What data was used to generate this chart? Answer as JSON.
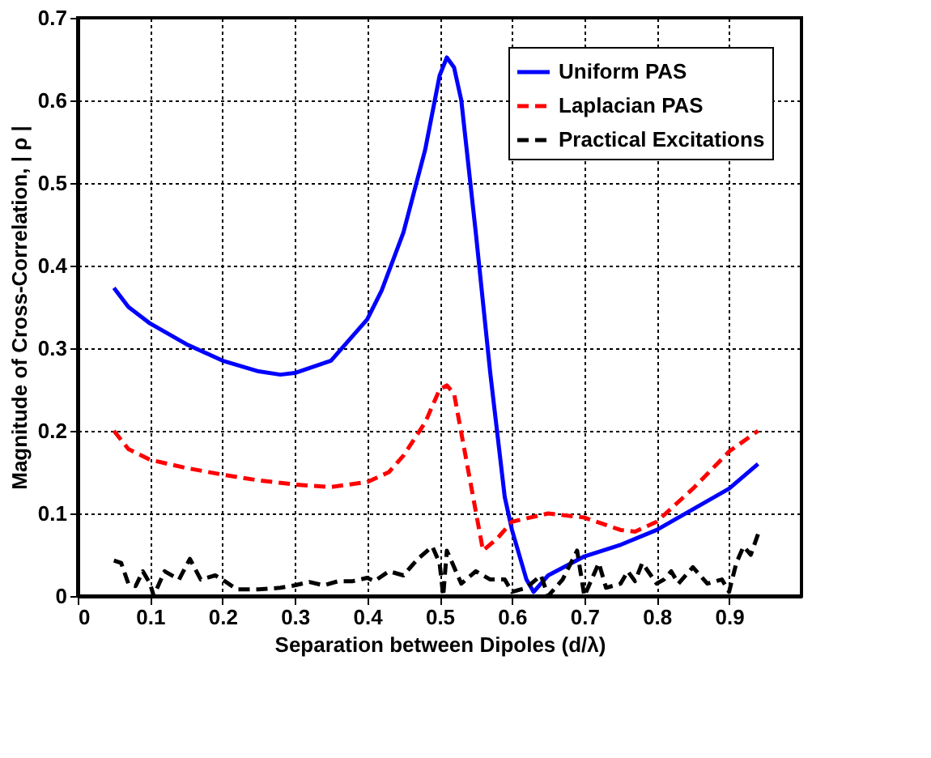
{
  "chart_data": {
    "type": "line",
    "xlabel": "Separation between Dipoles (d/λ)",
    "ylabel": "Magnitude of Cross-Correlation, | ρ |",
    "xlim": [
      0,
      1
    ],
    "xticks": [
      0,
      0.1,
      0.2,
      0.3,
      0.4,
      0.5,
      0.6,
      0.7,
      0.8,
      0.9
    ],
    "ylim": [
      0,
      0.7
    ],
    "yticks": [
      0,
      0.1,
      0.2,
      0.3,
      0.4,
      0.5,
      0.6,
      0.7
    ],
    "grid": true,
    "legend": "top right",
    "marker": "none",
    "series": [
      {
        "name": "Uniform PAS",
        "color": "#0000ff",
        "line_style": "solid",
        "x": [
          0.05,
          0.07,
          0.1,
          0.15,
          0.2,
          0.25,
          0.28,
          0.3,
          0.35,
          0.4,
          0.42,
          0.45,
          0.48,
          0.5,
          0.51,
          0.52,
          0.53,
          0.55,
          0.57,
          0.59,
          0.6,
          0.62,
          0.63,
          0.65,
          0.7,
          0.75,
          0.8,
          0.85,
          0.9,
          0.94
        ],
        "values": [
          0.373,
          0.35,
          0.33,
          0.305,
          0.285,
          0.272,
          0.268,
          0.27,
          0.285,
          0.335,
          0.37,
          0.44,
          0.54,
          0.63,
          0.652,
          0.64,
          0.6,
          0.44,
          0.27,
          0.12,
          0.08,
          0.02,
          0.005,
          0.025,
          0.048,
          0.062,
          0.08,
          0.105,
          0.13,
          0.16
        ]
      },
      {
        "name": "Laplacian PAS",
        "color": "#ff0000",
        "line_style": "dashed",
        "x": [
          0.05,
          0.07,
          0.1,
          0.15,
          0.2,
          0.25,
          0.3,
          0.35,
          0.4,
          0.43,
          0.45,
          0.48,
          0.5,
          0.51,
          0.52,
          0.54,
          0.56,
          0.58,
          0.6,
          0.65,
          0.7,
          0.75,
          0.77,
          0.8,
          0.85,
          0.9,
          0.94
        ],
        "values": [
          0.2,
          0.178,
          0.165,
          0.155,
          0.147,
          0.14,
          0.135,
          0.132,
          0.138,
          0.15,
          0.17,
          0.21,
          0.25,
          0.255,
          0.245,
          0.15,
          0.055,
          0.07,
          0.09,
          0.1,
          0.095,
          0.08,
          0.078,
          0.09,
          0.13,
          0.175,
          0.2
        ]
      },
      {
        "name": "Practical Excitations",
        "color": "#000000",
        "line_style": "dashed",
        "x": [
          0.05,
          0.06,
          0.07,
          0.08,
          0.09,
          0.1,
          0.105,
          0.12,
          0.14,
          0.155,
          0.17,
          0.19,
          0.2,
          0.22,
          0.25,
          0.28,
          0.3,
          0.32,
          0.34,
          0.36,
          0.38,
          0.4,
          0.41,
          0.43,
          0.45,
          0.47,
          0.49,
          0.5,
          0.505,
          0.51,
          0.53,
          0.55,
          0.57,
          0.59,
          0.6,
          0.62,
          0.64,
          0.65,
          0.67,
          0.69,
          0.7,
          0.72,
          0.73,
          0.75,
          0.76,
          0.77,
          0.78,
          0.8,
          0.81,
          0.82,
          0.83,
          0.85,
          0.87,
          0.89,
          0.9,
          0.91,
          0.92,
          0.93,
          0.94
        ],
        "values": [
          0.043,
          0.04,
          0.015,
          0.012,
          0.03,
          0.015,
          0.0,
          0.03,
          0.02,
          0.045,
          0.02,
          0.025,
          0.02,
          0.008,
          0.008,
          0.01,
          0.013,
          0.017,
          0.013,
          0.018,
          0.018,
          0.022,
          0.018,
          0.03,
          0.025,
          0.045,
          0.06,
          0.04,
          0.0,
          0.055,
          0.015,
          0.03,
          0.02,
          0.02,
          0.005,
          0.01,
          0.025,
          0.0,
          0.02,
          0.055,
          0.0,
          0.04,
          0.01,
          0.015,
          0.03,
          0.018,
          0.04,
          0.015,
          0.02,
          0.03,
          0.015,
          0.035,
          0.015,
          0.02,
          0.005,
          0.04,
          0.06,
          0.05,
          0.075
        ]
      }
    ]
  }
}
